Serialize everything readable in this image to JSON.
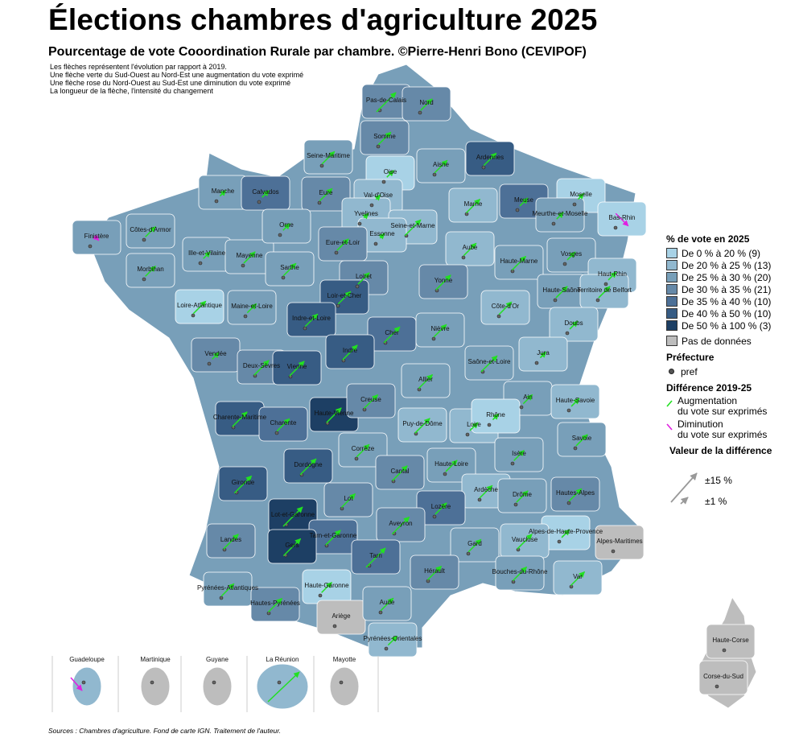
{
  "title": "Élections chambres d'agriculture 2025",
  "subtitle": "Pourcentage de vote Cooordination Rurale par chambre. ©Pierre-Henri Bono (CEVIPOF)",
  "notes": [
    "Les flèches représentent l'évolution par rapport à 2019.",
    "Une flèche verte du Sud-Ouest au Nord-Est une augmentation du vote exprimé",
    "Une flèche rose du Nord-Ouest au Sud-Est une diminution du vote exprimé",
    "La longueur de la flèche, l'intensité du changement"
  ],
  "colors": {
    "c0": "#a8d2e6",
    "c1": "#91b8cf",
    "c2": "#789fb9",
    "c3": "#6689a8",
    "c4": "#4d7097",
    "c5": "#375c84",
    "c6": "#1d3f64",
    "nodata": "#bdbdbd",
    "up": "#22e022",
    "down": "#e020e0"
  },
  "legend": {
    "title": "% de vote en 2025",
    "classes": [
      {
        "label": "De 0 % à 20 % (9)",
        "color": "#a8d2e6"
      },
      {
        "label": "De 20 % à 25 % (13)",
        "color": "#91b8cf"
      },
      {
        "label": "De 25 % à 30 % (20)",
        "color": "#789fb9"
      },
      {
        "label": "De 30 % à 35 % (21)",
        "color": "#6689a8"
      },
      {
        "label": "De 35 % à 40 % (10)",
        "color": "#4d7097"
      },
      {
        "label": "De 40 % à 50 % (10)",
        "color": "#375c84"
      },
      {
        "label": "De 50 % à 100 % (3)",
        "color": "#1d3f64"
      }
    ],
    "nodata_label": "Pas de données",
    "pref_title": "Préfecture",
    "pref_label": "pref",
    "diff_title": "Différence 2019-25",
    "up_line1": "Augmentation",
    "up_line2": "du vote sur exprimés",
    "down_line1": "Diminution",
    "down_line2": "du vote sur exprimés",
    "value_title": "Valeur de la différence",
    "scale_max": "±15 %",
    "scale_min": "±1 %"
  },
  "departments": [
    "Pas-de-Calais",
    "Nord",
    "Somme",
    "Seine-Maritime",
    "Oise",
    "Aisne",
    "Ardennes",
    "Manche",
    "Calvados",
    "Eure",
    "Val-d'Oise",
    "Yvelines",
    "Seine-et-Marne",
    "Essonne",
    "Marne",
    "Meuse",
    "Moselle",
    "Meurthe-et-Moselle",
    "Bas-Rhin",
    "Finistère",
    "Côtes-d'Armor",
    "Ille-et-Vilaine",
    "Mayenne",
    "Orne",
    "Eure-et-Loir",
    "Morbihan",
    "Sarthe",
    "Loiret",
    "Aube",
    "Haute-Marne",
    "Vosges",
    "Haut-Rhin",
    "Haute-Saône",
    "Territoire de Belfort",
    "Loire-Atlantique",
    "Maine-et-Loire",
    "Loir-et-Cher",
    "Indre-et-Loire",
    "Yonne",
    "Côte-d'Or",
    "Doubs",
    "Cher",
    "Nièvre",
    "Vendée",
    "Deux-Sèvres",
    "Vienne",
    "Indre",
    "Saône-et-Loire",
    "Jura",
    "Allier",
    "Ain",
    "Haute-Savoie",
    "Charente-Maritime",
    "Charente",
    "Haute-Vienne",
    "Creuse",
    "Puy-de-Dôme",
    "Loire",
    "Rhône",
    "Savoie",
    "Corrèze",
    "Dordogne",
    "Haute-Loire",
    "Isère",
    "Cantal",
    "Gironde",
    "Lot",
    "Ardèche",
    "Drôme",
    "Hautes-Alpes",
    "Lozère",
    "Lot-et-Garonne",
    "Aveyron",
    "Alpes-de-Haute-Provence",
    "Alpes-Maritimes",
    "Tarn-et-Garonne",
    "Landes",
    "Gers",
    "Tarn",
    "Gard",
    "Vaucluse",
    "Hérault",
    "Bouches-du-Rhône",
    "Var",
    "Pyrénées-Atlantiques",
    "Haute-Garonne",
    "Hautes-Pyrénées",
    "Ariège",
    "Aude",
    "Pyrénées-Orientales",
    "Haute-Corse",
    "Corse-du-Sud"
  ],
  "overseas": [
    "Guadeloupe",
    "Martinique",
    "Guyane",
    "La Réunion",
    "Mayotte"
  ],
  "source": "Sources : Chambres d'agriculture. Fond de carte IGN. Traitement de l'auteur."
}
